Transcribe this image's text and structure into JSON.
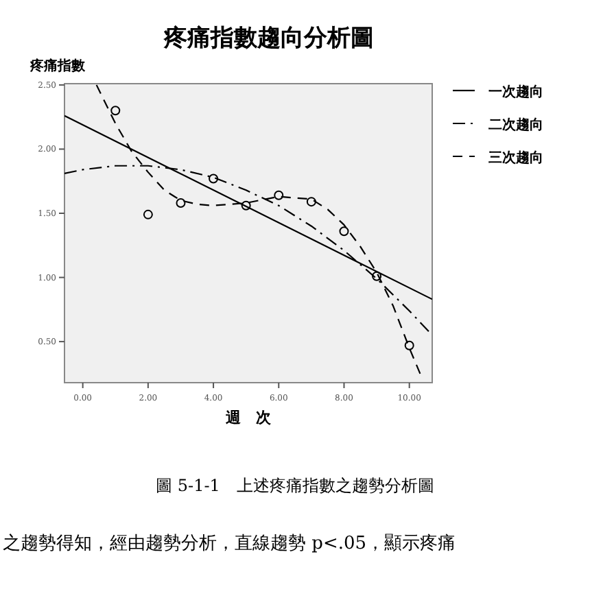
{
  "chart_data": {
    "type": "line",
    "title": "疼痛指數趨向分析圖",
    "ylabel": "疼痛指數",
    "xlabel": "週　次",
    "xlim": [
      -0.56,
      10.7
    ],
    "ylim": [
      0.18,
      2.51
    ],
    "xticks": [
      {
        "value": 0,
        "label": "0.00"
      },
      {
        "value": 2,
        "label": "2.00"
      },
      {
        "value": 4,
        "label": "4.00"
      },
      {
        "value": 6,
        "label": "6.00"
      },
      {
        "value": 8,
        "label": "8.00"
      },
      {
        "value": 10,
        "label": "10.00"
      }
    ],
    "yticks": [
      {
        "value": 0.5,
        "label": "0.50"
      },
      {
        "value": 1,
        "label": "1.00"
      },
      {
        "value": 1.5,
        "label": "1.50"
      },
      {
        "value": 2,
        "label": "2.00"
      },
      {
        "value": 2.5,
        "label": "2.50"
      }
    ],
    "grid": false,
    "legend": "right",
    "series": [
      {
        "type": "scatter",
        "marker": "circle",
        "color": "#000000",
        "x": [
          1,
          2,
          3,
          4,
          5,
          6,
          7,
          8,
          9,
          10
        ],
        "values": [
          2.3,
          1.49,
          1.58,
          1.77,
          1.56,
          1.64,
          1.59,
          1.36,
          1.01,
          0.47
        ]
      },
      {
        "type": "line",
        "name": "一次趨向",
        "line_style": "solid",
        "color": "#000000",
        "x": [
          -0.56,
          10.7
        ],
        "values": [
          2.26,
          0.83
        ]
      },
      {
        "type": "line",
        "name": "二次趨向",
        "line_style": "dashdot",
        "color": "#000000",
        "x": [
          -0.56,
          0,
          1,
          2,
          3,
          4,
          5,
          6,
          7,
          8,
          9,
          10,
          10.7
        ],
        "values": [
          1.81,
          1.84,
          1.87,
          1.87,
          1.84,
          1.78,
          1.68,
          1.56,
          1.4,
          1.21,
          0.99,
          0.74,
          0.55
        ]
      },
      {
        "type": "line",
        "name": "三次趨向",
        "line_style": "dashed",
        "color": "#000000",
        "x": [
          0.42,
          1,
          1.5,
          2,
          2.5,
          3,
          3.5,
          4,
          5,
          6,
          7,
          7.5,
          8,
          8.5,
          9,
          9.5,
          10,
          10.38
        ],
        "values": [
          2.5,
          2.2,
          1.98,
          1.82,
          1.68,
          1.6,
          1.57,
          1.56,
          1.58,
          1.63,
          1.61,
          1.53,
          1.41,
          1.24,
          1.04,
          0.78,
          0.45,
          0.22
        ]
      }
    ],
    "annotations": [
      "圖 5-1-1　上述疼痛指數之趨勢分析圖",
      "之趨勢得知，經由趨勢分析，直線趨勢 p<.05，顯示疼痛"
    ]
  }
}
